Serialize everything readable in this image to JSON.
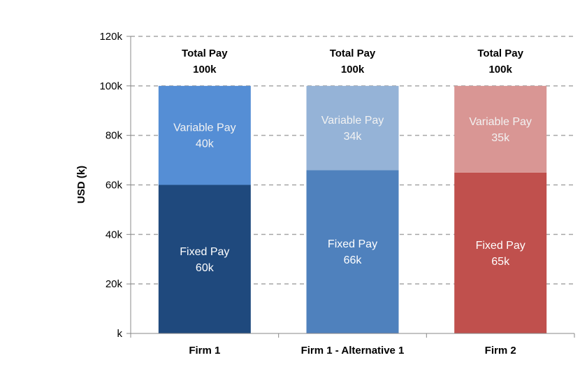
{
  "chart_data": {
    "type": "bar",
    "stacked": true,
    "ylabel": "USD (k)",
    "ylim": [
      0,
      120
    ],
    "yticks": [
      0,
      20,
      40,
      60,
      80,
      100,
      120
    ],
    "ytick_labels": [
      "k",
      "20k",
      "40k",
      "60k",
      "80k",
      "100k",
      "120k"
    ],
    "grid": true,
    "categories": [
      "Firm 1",
      "Firm 1 - Alternative 1",
      "Firm 2"
    ],
    "series": [
      {
        "name": "Fixed Pay",
        "values": [
          60,
          66,
          65
        ],
        "labels": [
          "60k",
          "66k",
          "65k"
        ],
        "colors": [
          "#1F497D",
          "#4F81BD",
          "#C0504D"
        ]
      },
      {
        "name": "Variable Pay",
        "values": [
          40,
          34,
          35
        ],
        "labels": [
          "40k",
          "34k",
          "35k"
        ],
        "colors": [
          "#558ED5",
          "#95B3D7",
          "#D99694"
        ]
      }
    ],
    "totals": {
      "label": "Total Pay",
      "values": [
        "100k",
        "100k",
        "100k"
      ]
    }
  }
}
